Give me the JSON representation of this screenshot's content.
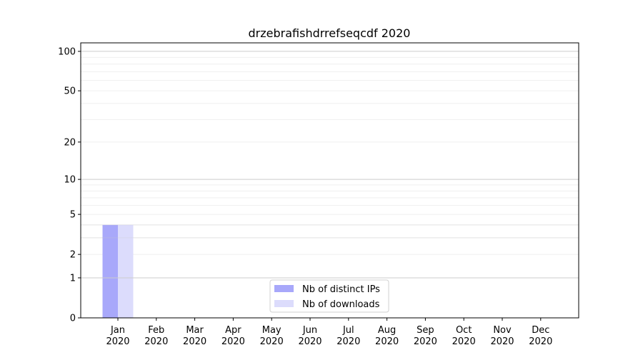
{
  "chart_data": {
    "type": "bar",
    "title": "drzebrafishdrrefseqcdf 2020",
    "xlabel": "",
    "ylabel": "",
    "categories": [
      "Jan\n2020",
      "Feb\n2020",
      "Mar\n2020",
      "Apr\n2020",
      "May\n2020",
      "Jun\n2020",
      "Jul\n2020",
      "Aug\n2020",
      "Sep\n2020",
      "Oct\n2020",
      "Nov\n2020",
      "Dec\n2020"
    ],
    "series": [
      {
        "name": "Nb of distinct IPs",
        "color": "#a8a8fa",
        "values": [
          4,
          0,
          0,
          0,
          0,
          0,
          0,
          0,
          0,
          0,
          0,
          0
        ]
      },
      {
        "name": "Nb of downloads",
        "color": "#dcdcfc",
        "values": [
          4,
          0,
          0,
          0,
          0,
          0,
          0,
          0,
          0,
          0,
          0,
          0
        ]
      }
    ],
    "yscale": "log(y+1)",
    "yticks": [
      0,
      1,
      2,
      5,
      10,
      20,
      50,
      100
    ],
    "ylim": [
      0,
      116
    ],
    "grid": true,
    "legend": "lower-center"
  }
}
